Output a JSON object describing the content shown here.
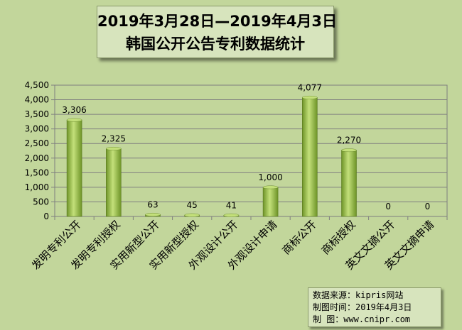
{
  "title": {
    "line1": "2019年3月28日—2019年4月3日",
    "line2": "韩国公开公告专利数据统计"
  },
  "source": {
    "line1": "数据来源：kipris网站",
    "line2": "制图时间：2019年4月3日",
    "line3": "制    图：www.cnipr.com"
  },
  "colors": {
    "background": "#c2d69b",
    "plot_area": "#c2d69b",
    "bar_light": "#c3e07a",
    "bar_dark": "#6e9428",
    "grid": "#7f7f7f"
  },
  "chart_data": {
    "type": "bar",
    "categories": [
      "发明专利公开",
      "发明专利授权",
      "实用新型公开",
      "实用新型授权",
      "外观设计公开",
      "外观设计申请",
      "商标公开",
      "商标授权",
      "英文文摘公开",
      "英文文摘申请"
    ],
    "values": [
      3306,
      2325,
      63,
      45,
      41,
      1000,
      4077,
      2270,
      0,
      0
    ],
    "data_labels": [
      "3,306",
      "2,325",
      "63",
      "45",
      "41",
      "1,000",
      "4,077",
      "2,270",
      "0",
      "0"
    ],
    "yticks": [
      "0",
      "500",
      "1,000",
      "1,500",
      "2,000",
      "2,500",
      "3,000",
      "3,500",
      "4,000",
      "4,500"
    ],
    "ylim": [
      0,
      4500
    ],
    "grid": true,
    "legend": false
  }
}
